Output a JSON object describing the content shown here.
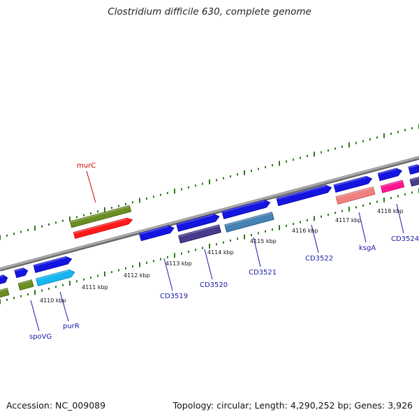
{
  "title": "Clostridium difficile 630, complete genome",
  "footer": {
    "accession": "Accession: NC_009089",
    "stats": "Topology: circular; Length: 4,290,252 bp; Genes: 3,926"
  },
  "colors": {
    "backbone": "#8a8a8a",
    "dot_track": "#2a7a1a",
    "gene_label_blue": "#1a1aa8",
    "gene_label_red": "#cc0000",
    "tick_text": "#111111"
  },
  "tick_labels": [
    "4110 kbp",
    "4111 kbp",
    "4112 kbp",
    "4113 kbp",
    "4114 kbp",
    "4115 kbp",
    "4116 kbp",
    "4117 kbp",
    "4118 kbp"
  ],
  "gene_labels": [
    {
      "name": "murC",
      "color": "#cc0000"
    },
    {
      "name": "spoVG",
      "color": "#1a1aa8"
    },
    {
      "name": "purR",
      "color": "#1a1aa8"
    },
    {
      "name": "CD3519",
      "color": "#1a1aa8"
    },
    {
      "name": "CD3520",
      "color": "#1a1aa8"
    },
    {
      "name": "CD3521",
      "color": "#1a1aa8"
    },
    {
      "name": "CD3522",
      "color": "#1a1aa8"
    },
    {
      "name": "ksgA",
      "color": "#1a1aa8"
    },
    {
      "name": "CD3524",
      "color": "#1a1aa8"
    }
  ],
  "feature_colors": {
    "cds": "#1515e0",
    "olive": "#6b8e23",
    "red": "#ff1a1a",
    "cyan": "#18b6f0",
    "purple": "#4a3a8c",
    "steel": "#4682b4",
    "salmon": "#f08080",
    "magenta": "#ff1493",
    "dark_slate": "#483d8b"
  }
}
